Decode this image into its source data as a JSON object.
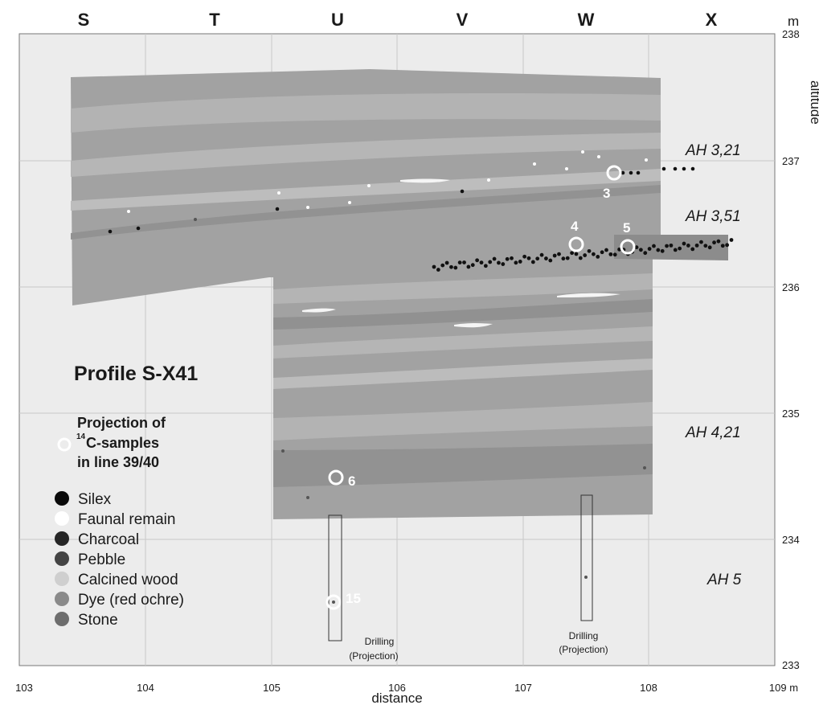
{
  "profile": {
    "title": "Profile S-X41",
    "projection_lines": [
      "Projection of",
      "C-samples",
      "in line 39/40"
    ],
    "projection_superscript": "14",
    "column_letters": [
      "S",
      "T",
      "U",
      "V",
      "W",
      "X"
    ],
    "top_unit": "m",
    "right_axis_label": "altitude",
    "bottom_axis_label": "distance",
    "x_ticks": [
      "103",
      "104",
      "105",
      "106",
      "107",
      "108",
      "109 m"
    ],
    "y_ticks": [
      "238",
      "237",
      "236",
      "235",
      "234",
      "233"
    ],
    "layer_labels": [
      "AH 3,21",
      "AH 3,51",
      "AH 4,21",
      "AH 5"
    ],
    "sample_labels": [
      "3",
      "4",
      "5",
      "6",
      "15"
    ],
    "drilling_labels": [
      {
        "line1": "Drilling",
        "line2": "(Projection)"
      },
      {
        "line1": "Drilling",
        "line2": "(Projection)"
      }
    ],
    "legend": [
      {
        "label": "Silex",
        "color": "#0a0a0a"
      },
      {
        "label": "Faunal remain",
        "color": "#ffffff"
      },
      {
        "label": "Charcoal",
        "color": "#262626"
      },
      {
        "label": "Pebble",
        "color": "#444444"
      },
      {
        "label": "Calcined wood",
        "color": "#cfcfcf"
      },
      {
        "label": "Dye (red ochre)",
        "color": "#8a8a8a"
      },
      {
        "label": "Stone",
        "color": "#6d6d6d"
      }
    ]
  },
  "colors": {
    "background": "#ececec",
    "grid": "#c4c4c4",
    "sediment_base": "#9f9f9f",
    "sediment_light": "#b7b7b7",
    "sediment_dark": "#8c8c8c"
  }
}
